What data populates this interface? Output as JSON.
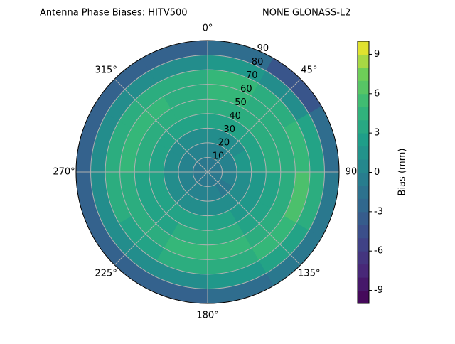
{
  "chart_data": {
    "type": "polar-contour",
    "title": "Antenna Phase Biases: HITV500",
    "subtitle": "NONE GLONASS-L2",
    "colorbar_label": "Bias (mm)",
    "colormap": "viridis",
    "clim": [
      -10,
      10
    ],
    "cticks": [
      -9,
      -6,
      -3,
      0,
      3,
      6,
      9
    ],
    "rlim": [
      0,
      90
    ],
    "rticks": [
      10,
      20,
      30,
      40,
      50,
      60,
      70,
      80,
      90
    ],
    "thetaticks": [
      {
        "value": 0,
        "label": "0°"
      },
      {
        "value": 45,
        "label": "45°"
      },
      {
        "value": 90,
        "label": "90"
      },
      {
        "value": 135,
        "label": "135°"
      },
      {
        "value": 180,
        "label": "180°"
      },
      {
        "value": 225,
        "label": "225°"
      },
      {
        "value": 270,
        "label": "270°"
      },
      {
        "value": 315,
        "label": "315°"
      }
    ],
    "grid": true,
    "zenith_bins": [
      0,
      10,
      20,
      30,
      40,
      50,
      60,
      70,
      80,
      90
    ],
    "azimuth_bins": [
      0,
      30,
      60,
      90,
      120,
      150,
      180,
      210,
      240,
      270,
      300,
      330,
      360
    ],
    "values": [
      [
        -1,
        -1,
        -1,
        -1,
        -1,
        -1,
        -1,
        -1,
        -1,
        -1,
        -1,
        -1
      ],
      [
        0,
        0,
        0,
        0,
        -1,
        0,
        0,
        0,
        0,
        0,
        0,
        0
      ],
      [
        1,
        1,
        2,
        1,
        1,
        1,
        1,
        1,
        1,
        1,
        1,
        1
      ],
      [
        3,
        3,
        3,
        2,
        2,
        3,
        3,
        3,
        3,
        3,
        3,
        3
      ],
      [
        4,
        4,
        4,
        3,
        3,
        4,
        4,
        3,
        3,
        4,
        4,
        4
      ],
      [
        5,
        4,
        4,
        4,
        4,
        5,
        5,
        4,
        4,
        5,
        5,
        4
      ],
      [
        5,
        4,
        5,
        6,
        5,
        4,
        4,
        3,
        4,
        4,
        4,
        4
      ],
      [
        2,
        1,
        3,
        4,
        3,
        2,
        1,
        1,
        1,
        1,
        1,
        1
      ],
      [
        -2,
        -4,
        -2,
        -1,
        -1,
        -2,
        -3,
        -3,
        -3,
        -3,
        -3,
        -3
      ]
    ]
  }
}
